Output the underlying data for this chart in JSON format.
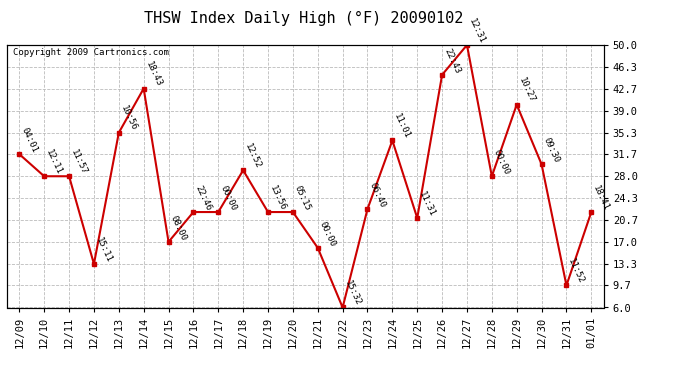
{
  "title": "THSW Index Daily High (°F) 20090102",
  "copyright": "Copyright 2009 Cartronics.com",
  "x_labels": [
    "12/09",
    "12/10",
    "12/11",
    "12/12",
    "12/13",
    "12/14",
    "12/15",
    "12/16",
    "12/17",
    "12/18",
    "12/19",
    "12/20",
    "12/21",
    "12/22",
    "12/23",
    "12/24",
    "12/25",
    "12/26",
    "12/27",
    "12/28",
    "12/29",
    "12/30",
    "12/31",
    "01/01"
  ],
  "y_values": [
    31.7,
    28.0,
    28.0,
    13.3,
    35.3,
    42.7,
    17.0,
    22.0,
    22.0,
    29.0,
    22.0,
    22.0,
    16.0,
    6.0,
    22.5,
    34.0,
    21.0,
    45.0,
    50.0,
    28.0,
    40.0,
    30.0,
    9.7,
    22.0
  ],
  "point_labels": [
    "04:01",
    "12:11",
    "11:57",
    "15:11",
    "10:56",
    "18:43",
    "08:00",
    "22:46",
    "00:00",
    "12:52",
    "13:56",
    "05:15",
    "00:00",
    "15:32",
    "06:40",
    "11:01",
    "11:31",
    "22:43",
    "12:31",
    "00:00",
    "10:27",
    "09:30",
    "11:52",
    "18:41"
  ],
  "y_ticks": [
    6.0,
    9.7,
    13.3,
    17.0,
    20.7,
    24.3,
    28.0,
    31.7,
    35.3,
    39.0,
    42.7,
    46.3,
    50.0
  ],
  "y_tick_labels": [
    "6.0",
    "9.7",
    "13.3",
    "17.0",
    "20.7",
    "24.3",
    "28.0",
    "31.7",
    "35.3",
    "39.0",
    "42.7",
    "46.3",
    "50.0"
  ],
  "y_min": 6.0,
  "y_max": 50.0,
  "line_color": "#cc0000",
  "marker_color": "#cc0000",
  "bg_color": "#ffffff",
  "plot_bg_color": "#ffffff",
  "grid_color": "#bbbbbb",
  "title_fontsize": 11,
  "copyright_fontsize": 6.5,
  "label_fontsize": 6.5,
  "tick_fontsize": 7.5
}
